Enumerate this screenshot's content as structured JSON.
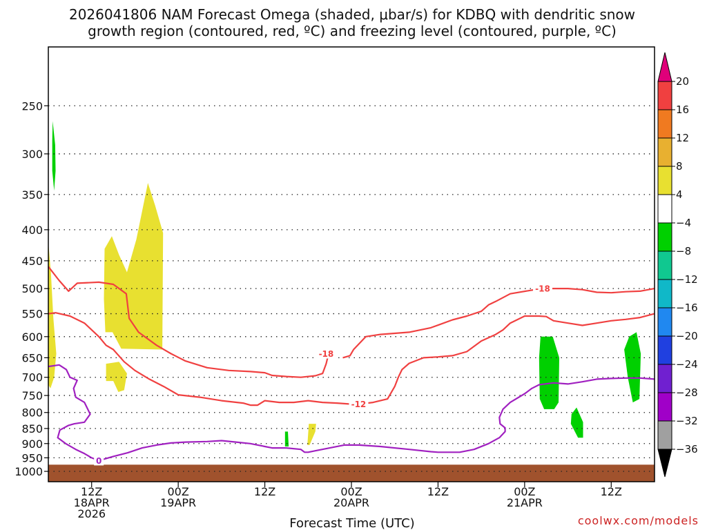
{
  "chart_data": {
    "type": "time-height",
    "title_line1": "2026041806 NAM Forecast Omega (shaded, μbar/s) for KDBQ with dendritic snow",
    "title_line2": "growth region (contoured, red, ºC) and freezing level (contoured, purple, ºC)",
    "xlabel": "Forecast Time (UTC)",
    "credit": "coolwx.com/models",
    "y_axis": {
      "scale": "log-pressure",
      "unit": "hPa",
      "range": [
        1040,
        200
      ],
      "ticks": [
        250,
        300,
        350,
        400,
        450,
        500,
        550,
        600,
        650,
        700,
        750,
        800,
        850,
        900,
        950,
        1000
      ]
    },
    "x_axis": {
      "unit": "forecast hours",
      "range": [
        0,
        84
      ],
      "ticks": [
        {
          "hour": 6,
          "line1": "12Z",
          "line2": "18APR",
          "line3": "2026"
        },
        {
          "hour": 18,
          "line1": "00Z",
          "line2": "19APR",
          "line3": ""
        },
        {
          "hour": 30,
          "line1": "12Z",
          "line2": "",
          "line3": ""
        },
        {
          "hour": 42,
          "line1": "00Z",
          "line2": "20APR",
          "line3": ""
        },
        {
          "hour": 54,
          "line1": "12Z",
          "line2": "",
          "line3": ""
        },
        {
          "hour": 66,
          "line1": "00Z",
          "line2": "21APR",
          "line3": ""
        },
        {
          "hour": 78,
          "line1": "12Z",
          "line2": "",
          "line3": ""
        }
      ]
    },
    "colorbar": {
      "labels": [
        "20",
        "16",
        "12",
        "8",
        "4",
        "−4",
        "−8",
        "−12",
        "−16",
        "−20",
        "−24",
        "−28",
        "−32",
        "−36"
      ],
      "top_triangle_color": "#e0007a",
      "bottom_triangle_color": "#000000",
      "segments": [
        "#f04040",
        "#f07a20",
        "#e8b030",
        "#e8e030",
        "#ffffff",
        "#00d000",
        "#10c890",
        "#10b8c8",
        "#2088f0",
        "#2040e0",
        "#7020d0",
        "#a000c8",
        "#a0a0a0"
      ]
    },
    "ground": {
      "color": "#a0522d",
      "top_hpa": 975
    },
    "omega_regions": [
      {
        "name": "omega-green-upper",
        "color": "#00d000",
        "points": [
          [
            0.6,
            265
          ],
          [
            0.95,
            290
          ],
          [
            1.0,
            320
          ],
          [
            0.8,
            345
          ],
          [
            0.55,
            320
          ],
          [
            0.55,
            285
          ]
        ]
      },
      {
        "name": "omega-yellow-left",
        "color": "#e8e030",
        "points": [
          [
            0.0,
            420
          ],
          [
            0.35,
            470
          ],
          [
            0.7,
            560
          ],
          [
            1.1,
            640
          ],
          [
            0.8,
            700
          ],
          [
            0.3,
            730
          ],
          [
            0.0,
            720
          ]
        ]
      },
      {
        "name": "omega-yellow-mid",
        "color": "#e8e030",
        "points": [
          [
            7.8,
            430
          ],
          [
            8.8,
            410
          ],
          [
            9.8,
            440
          ],
          [
            10.9,
            470
          ],
          [
            12.2,
            415
          ],
          [
            13.8,
            335
          ],
          [
            14.8,
            365
          ],
          [
            15.9,
            405
          ],
          [
            15.8,
            630
          ],
          [
            10.1,
            628
          ],
          [
            8.9,
            590
          ],
          [
            7.9,
            590
          ],
          [
            7.7,
            520
          ]
        ]
      },
      {
        "name": "omega-yellow-small",
        "color": "#e8e030",
        "points": [
          [
            8.0,
            665
          ],
          [
            9.8,
            660
          ],
          [
            10.9,
            690
          ],
          [
            10.5,
            735
          ],
          [
            9.7,
            740
          ],
          [
            9.0,
            710
          ],
          [
            8.0,
            710
          ]
        ]
      },
      {
        "name": "omega-green-thin",
        "color": "#00d000",
        "points": [
          [
            32.8,
            860
          ],
          [
            33.2,
            860
          ],
          [
            33.3,
            910
          ],
          [
            32.8,
            910
          ]
        ]
      },
      {
        "name": "omega-yellow-thin",
        "color": "#e8e030",
        "points": [
          [
            36.1,
            835
          ],
          [
            37.1,
            835
          ],
          [
            37.0,
            860
          ],
          [
            36.2,
            905
          ],
          [
            35.9,
            905
          ]
        ]
      },
      {
        "name": "omega-green-right",
        "color": "#00d000",
        "points": [
          [
            68.2,
            600
          ],
          [
            69.9,
            600
          ],
          [
            70.8,
            650
          ],
          [
            70.7,
            770
          ],
          [
            70.1,
            790
          ],
          [
            68.7,
            790
          ],
          [
            68.1,
            760
          ],
          [
            68.0,
            650
          ]
        ]
      },
      {
        "name": "omega-green-right-low",
        "color": "#00d000",
        "points": [
          [
            72.5,
            805
          ],
          [
            73.2,
            785
          ],
          [
            74.1,
            830
          ],
          [
            74.1,
            880
          ],
          [
            73.4,
            880
          ],
          [
            72.4,
            835
          ]
        ]
      },
      {
        "name": "omega-green-far-right",
        "color": "#00d000",
        "points": [
          [
            80.5,
            600
          ],
          [
            81.5,
            590
          ],
          [
            82.1,
            640
          ],
          [
            81.9,
            760
          ],
          [
            81.0,
            770
          ],
          [
            80.3,
            700
          ],
          [
            79.8,
            630
          ]
        ]
      }
    ],
    "series": [
      {
        "name": "-18",
        "color": "#f04040",
        "label_at": [
          38.5,
          640
        ],
        "points": [
          [
            0,
            460
          ],
          [
            1.5,
            485
          ],
          [
            2.8,
            505
          ],
          [
            4,
            490
          ],
          [
            7,
            488
          ],
          [
            9,
            492
          ],
          [
            10.8,
            510
          ],
          [
            11.2,
            560
          ],
          [
            12.5,
            590
          ],
          [
            15,
            620
          ],
          [
            17,
            640
          ],
          [
            19,
            658
          ],
          [
            22,
            675
          ],
          [
            25,
            682
          ],
          [
            28,
            685
          ],
          [
            30,
            688
          ],
          [
            31,
            695
          ],
          [
            33,
            698
          ],
          [
            35,
            700
          ],
          [
            37,
            696
          ],
          [
            38,
            690
          ],
          [
            38.5,
            665
          ],
          [
            38.7,
            650
          ]
        ]
      },
      {
        "name": "-18",
        "color": "#f04040",
        "label_at": [
          68.5,
          500
        ],
        "points": [
          [
            40.8,
            650
          ],
          [
            41.8,
            645
          ],
          [
            42.3,
            630
          ],
          [
            44,
            600
          ],
          [
            46,
            595
          ],
          [
            50,
            590
          ],
          [
            53,
            580
          ],
          [
            56,
            563
          ],
          [
            58,
            555
          ],
          [
            60,
            545
          ],
          [
            61,
            532
          ],
          [
            62,
            525
          ],
          [
            64,
            510
          ],
          [
            67,
            503
          ],
          [
            69,
            500
          ],
          [
            72,
            500
          ],
          [
            74,
            502
          ],
          [
            76,
            507
          ],
          [
            78,
            508
          ],
          [
            80,
            506
          ],
          [
            82,
            505
          ],
          [
            84,
            500
          ]
        ]
      },
      {
        "name": "-12",
        "color": "#f04040",
        "label_at": [
          43,
          775
        ],
        "points": [
          [
            0,
            550
          ],
          [
            1,
            548
          ],
          [
            3,
            555
          ],
          [
            5,
            570
          ],
          [
            7,
            600
          ],
          [
            8,
            620
          ],
          [
            9,
            630
          ],
          [
            10.5,
            660
          ],
          [
            12,
            682
          ],
          [
            14,
            705
          ],
          [
            16,
            725
          ],
          [
            18,
            748
          ],
          [
            21,
            755
          ],
          [
            24,
            765
          ],
          [
            27,
            772
          ],
          [
            28,
            778
          ],
          [
            29,
            778
          ],
          [
            30,
            765
          ],
          [
            32,
            770
          ],
          [
            34,
            770
          ],
          [
            36,
            765
          ],
          [
            38,
            770
          ],
          [
            40,
            772
          ],
          [
            42,
            775
          ],
          [
            43,
            775
          ],
          [
            45,
            770
          ],
          [
            47,
            760
          ],
          [
            48,
            725
          ],
          [
            48.5,
            700
          ],
          [
            49,
            680
          ],
          [
            50,
            664
          ],
          [
            52,
            650
          ],
          [
            54,
            648
          ],
          [
            56,
            645
          ],
          [
            58,
            635
          ],
          [
            60,
            610
          ],
          [
            62,
            595
          ],
          [
            63,
            585
          ],
          [
            64,
            570
          ],
          [
            66,
            555
          ],
          [
            68,
            555
          ],
          [
            69,
            556
          ],
          [
            70,
            565
          ],
          [
            72,
            570
          ],
          [
            74,
            575
          ],
          [
            76,
            570
          ],
          [
            78,
            565
          ],
          [
            80,
            562
          ],
          [
            82,
            558
          ],
          [
            84,
            550
          ]
        ]
      },
      {
        "name": "0",
        "color": "#a020c0",
        "label_at": [
          7,
          960
        ],
        "points": [
          [
            0,
            672
          ],
          [
            1.5,
            668
          ],
          [
            2.5,
            680
          ],
          [
            3,
            700
          ],
          [
            4,
            708
          ],
          [
            3.5,
            730
          ],
          [
            3.8,
            755
          ],
          [
            5,
            770
          ],
          [
            5.8,
            805
          ],
          [
            5,
            830
          ],
          [
            3.6,
            835
          ],
          [
            2.8,
            840
          ],
          [
            1.6,
            855
          ],
          [
            1.3,
            880
          ],
          [
            2.4,
            900
          ],
          [
            3.8,
            920
          ],
          [
            5,
            935
          ],
          [
            6,
            950
          ],
          [
            7,
            960
          ],
          [
            9,
            945
          ],
          [
            11,
            932
          ],
          [
            13,
            915
          ],
          [
            15,
            905
          ],
          [
            17,
            898
          ],
          [
            19,
            895
          ],
          [
            22,
            893
          ],
          [
            24,
            890
          ],
          [
            26,
            895
          ],
          [
            28,
            900
          ],
          [
            30,
            910
          ],
          [
            31,
            915
          ],
          [
            33,
            915
          ],
          [
            35,
            920
          ],
          [
            35.5,
            930
          ],
          [
            36,
            930
          ],
          [
            37,
            925
          ],
          [
            39,
            915
          ],
          [
            41,
            905
          ],
          [
            43,
            905
          ],
          [
            46,
            910
          ],
          [
            50,
            920
          ],
          [
            53,
            928
          ],
          [
            54,
            930
          ],
          [
            57,
            930
          ],
          [
            59,
            920
          ],
          [
            61,
            900
          ],
          [
            62.5,
            880
          ],
          [
            63.3,
            860
          ],
          [
            63.3,
            848
          ],
          [
            62.6,
            835
          ],
          [
            62.5,
            815
          ],
          [
            63,
            790
          ],
          [
            64,
            770
          ],
          [
            66,
            745
          ],
          [
            67,
            730
          ],
          [
            68,
            720
          ],
          [
            70,
            715
          ],
          [
            72,
            718
          ],
          [
            74,
            712
          ],
          [
            76,
            705
          ],
          [
            78,
            703
          ],
          [
            80,
            702
          ],
          [
            82,
            702
          ],
          [
            84,
            705
          ]
        ]
      }
    ]
  }
}
